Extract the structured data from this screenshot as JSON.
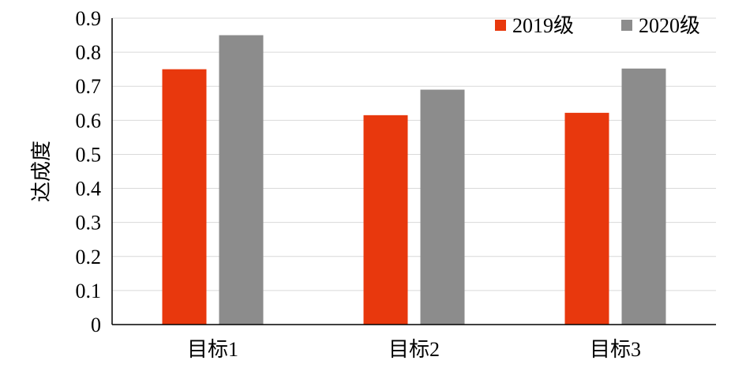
{
  "chart_data": {
    "type": "bar",
    "title": "",
    "xlabel": "",
    "ylabel": "达成度",
    "ylim": [
      0,
      0.9
    ],
    "yticks": [
      0,
      0.1,
      0.2,
      0.3,
      0.4,
      0.5,
      0.6,
      0.7,
      0.8,
      0.9
    ],
    "ytick_labels": [
      "0",
      "0.1",
      "0.2",
      "0.3",
      "0.4",
      "0.5",
      "0.6",
      "0.7",
      "0.8",
      "0.9"
    ],
    "categories": [
      "目标1",
      "目标2",
      "目标3"
    ],
    "series": [
      {
        "name": "2019级",
        "color": "#e8380d",
        "values": [
          0.75,
          0.615,
          0.622
        ]
      },
      {
        "name": "2020级",
        "color": "#8c8c8c",
        "values": [
          0.85,
          0.69,
          0.752
        ]
      }
    ],
    "grid": true,
    "gridline_color": "#d9d9d9",
    "legend_position": "top-right"
  }
}
